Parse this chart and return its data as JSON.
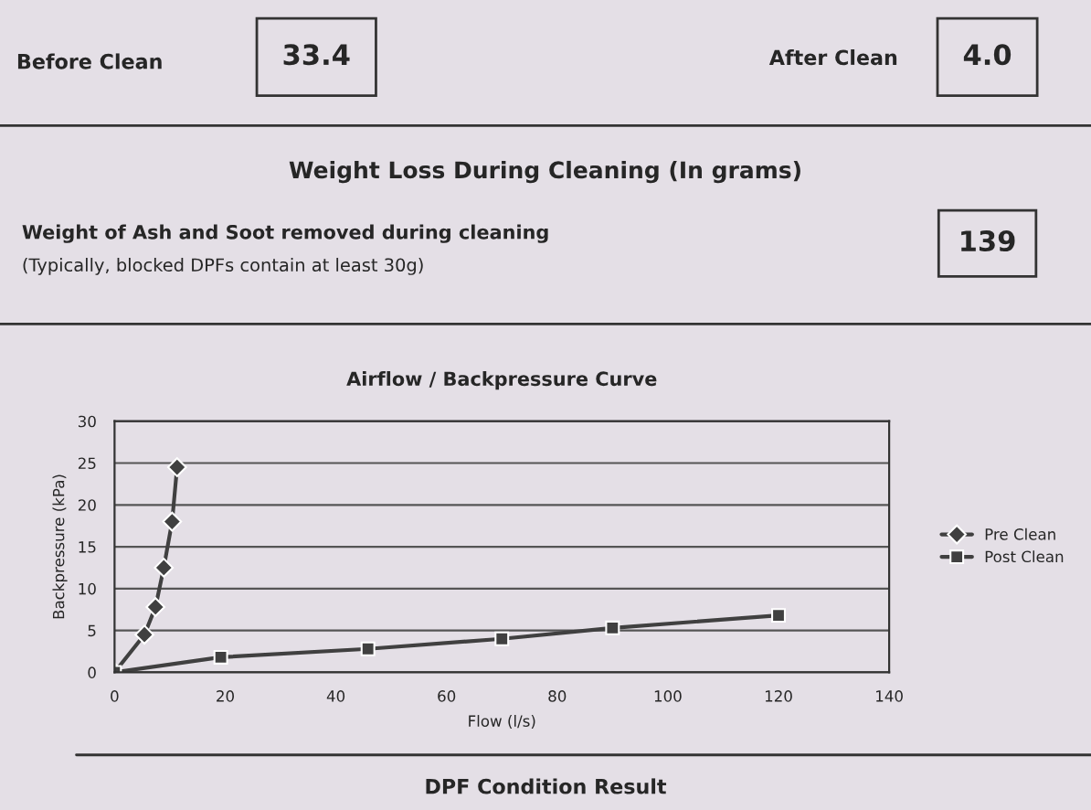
{
  "chart_data": {
    "type": "line",
    "title": "Airflow / Backpressure Curve",
    "xlabel": "Flow (l/s)",
    "ylabel": "Backpressure (kPa)",
    "annotations": [
      "Before Clean",
      "33.4",
      "After Clean",
      "4.0",
      "Weight Loss During Cleaning (In grams)",
      "Weight of Ash and Soot removed during cleaning",
      "(Typically, blocked DPFs contain at least 30g)",
      "139",
      "DPF Condition Result"
    ],
    "series": [
      {
        "name": "Pre Clean",
        "color": "#404040",
        "marker": "diamond",
        "x": [
          0,
          5.4,
          7.4,
          8.9,
          10.4,
          11.3
        ],
        "values": [
          0,
          4.5,
          7.8,
          12.5,
          18,
          24.5
        ]
      },
      {
        "name": "Post Clean",
        "color": "#404040",
        "marker": "square",
        "x": [
          0,
          19.2,
          45.8,
          70,
          90,
          120
        ],
        "values": [
          0,
          1.8,
          2.8,
          4.0,
          5.3,
          6.8
        ]
      }
    ],
    "xlim": [
      0,
      140
    ],
    "xticks": [
      0,
      20,
      40,
      60,
      80,
      100,
      120,
      140
    ],
    "ylim": [
      0,
      30
    ],
    "yticks": [
      0,
      5,
      10,
      15,
      20,
      25,
      30
    ],
    "grid": "y",
    "legend": "right"
  }
}
